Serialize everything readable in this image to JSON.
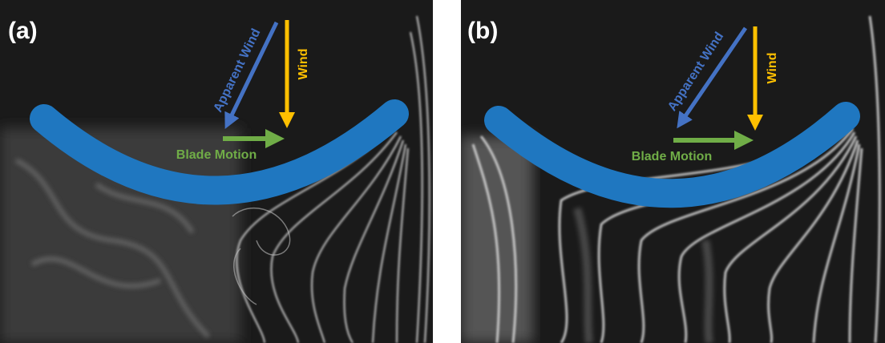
{
  "panels": [
    {
      "label": "(a)",
      "apparent_wind": "Apparent Wind",
      "wind": "Wind",
      "blade_motion": "Blade Motion"
    },
    {
      "label": "(b)",
      "apparent_wind": "Apparent Wind",
      "wind": "Wind",
      "blade_motion": "Blade Motion"
    }
  ]
}
